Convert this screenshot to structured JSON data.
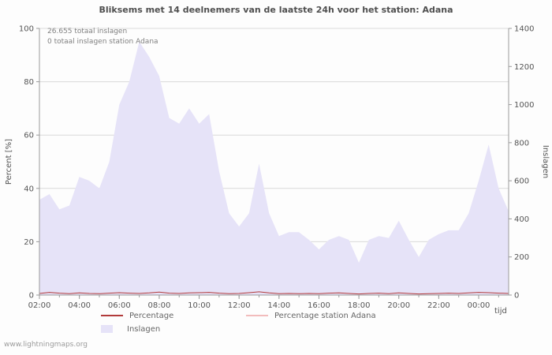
{
  "page": {
    "watermark": "www.lightningmaps.org",
    "background": "#fdfdfd"
  },
  "chart_data": {
    "type": "area",
    "title": "Bliksems met 14 deelnemers van de laatste 24h voor het station: Adana",
    "xlabel": "tijd",
    "ylabel_left": "Percent  [%]",
    "ylabel_right": "Inslagen",
    "ylim_left": [
      0,
      100
    ],
    "ylim_right": [
      0,
      1400
    ],
    "y_left_ticks": [
      0,
      20,
      40,
      60,
      80,
      100
    ],
    "y_right_ticks": [
      0,
      200,
      400,
      600,
      800,
      1000,
      1200,
      1400
    ],
    "grid": true,
    "x_range": [
      2,
      25.5
    ],
    "x_ticks": [
      2,
      4,
      6,
      8,
      10,
      12,
      14,
      16,
      18,
      20,
      22,
      24
    ],
    "x_tick_labels": [
      "02:00",
      "04:00",
      "06:00",
      "08:00",
      "10:00",
      "12:00",
      "14:00",
      "16:00",
      "18:00",
      "20:00",
      "22:00",
      "00:00"
    ],
    "annotations": [
      "26.655 totaal inslagen",
      "0 totaal inslagen station Adana"
    ],
    "x": [
      2,
      2.5,
      3,
      3.5,
      4,
      4.5,
      5,
      5.5,
      6,
      6.5,
      7,
      7.5,
      8,
      8.5,
      9,
      9.5,
      10,
      10.5,
      11,
      11.5,
      12,
      12.5,
      13,
      13.5,
      14,
      14.5,
      15,
      15.5,
      16,
      16.5,
      17,
      17.5,
      18,
      18.5,
      19,
      19.5,
      20,
      20.5,
      21,
      21.5,
      22,
      22.5,
      23,
      23.5,
      24,
      24.5,
      25,
      25.5
    ],
    "series": [
      {
        "name": "Inslagen",
        "type": "area",
        "axis": "right",
        "color": "#e6e3f8",
        "values": [
          500,
          530,
          450,
          470,
          620,
          600,
          560,
          700,
          1000,
          1120,
          1330,
          1250,
          1150,
          930,
          900,
          980,
          900,
          950,
          650,
          430,
          360,
          430,
          690,
          430,
          310,
          330,
          330,
          290,
          240,
          290,
          310,
          290,
          170,
          290,
          310,
          300,
          390,
          290,
          200,
          290,
          320,
          340,
          340,
          430,
          600,
          790,
          560,
          440
        ]
      },
      {
        "name": "Percentage",
        "type": "line",
        "axis": "left",
        "color": "#b23b3b",
        "values": [
          0.6,
          1.0,
          0.7,
          0.5,
          0.8,
          0.6,
          0.5,
          0.7,
          0.9,
          0.7,
          0.6,
          0.8,
          1.1,
          0.7,
          0.6,
          0.8,
          0.9,
          1.0,
          0.7,
          0.5,
          0.6,
          0.9,
          1.2,
          0.8,
          0.5,
          0.6,
          0.5,
          0.6,
          0.5,
          0.7,
          0.8,
          0.6,
          0.4,
          0.6,
          0.7,
          0.5,
          0.8,
          0.6,
          0.4,
          0.5,
          0.6,
          0.7,
          0.6,
          0.8,
          1.0,
          0.9,
          0.7,
          0.6
        ]
      },
      {
        "name": "Percentage station Adana",
        "type": "line",
        "axis": "left",
        "color": "#f2bcbc",
        "values": [
          0,
          0,
          0,
          0,
          0,
          0,
          0,
          0,
          0,
          0,
          0,
          0,
          0,
          0,
          0,
          0,
          0,
          0,
          0,
          0,
          0,
          0,
          0,
          0,
          0,
          0,
          0,
          0,
          0,
          0,
          0,
          0,
          0,
          0,
          0,
          0,
          0,
          0,
          0,
          0,
          0,
          0,
          0,
          0,
          0,
          0,
          0,
          0
        ]
      }
    ],
    "legend": [
      {
        "label": "Percentage",
        "swatch": "line",
        "color": "#b23b3b"
      },
      {
        "label": "Percentage station Adana",
        "swatch": "line",
        "color": "#f2bcbc"
      },
      {
        "label": "Inslagen",
        "swatch": "area",
        "color": "#e6e3f8"
      }
    ]
  }
}
